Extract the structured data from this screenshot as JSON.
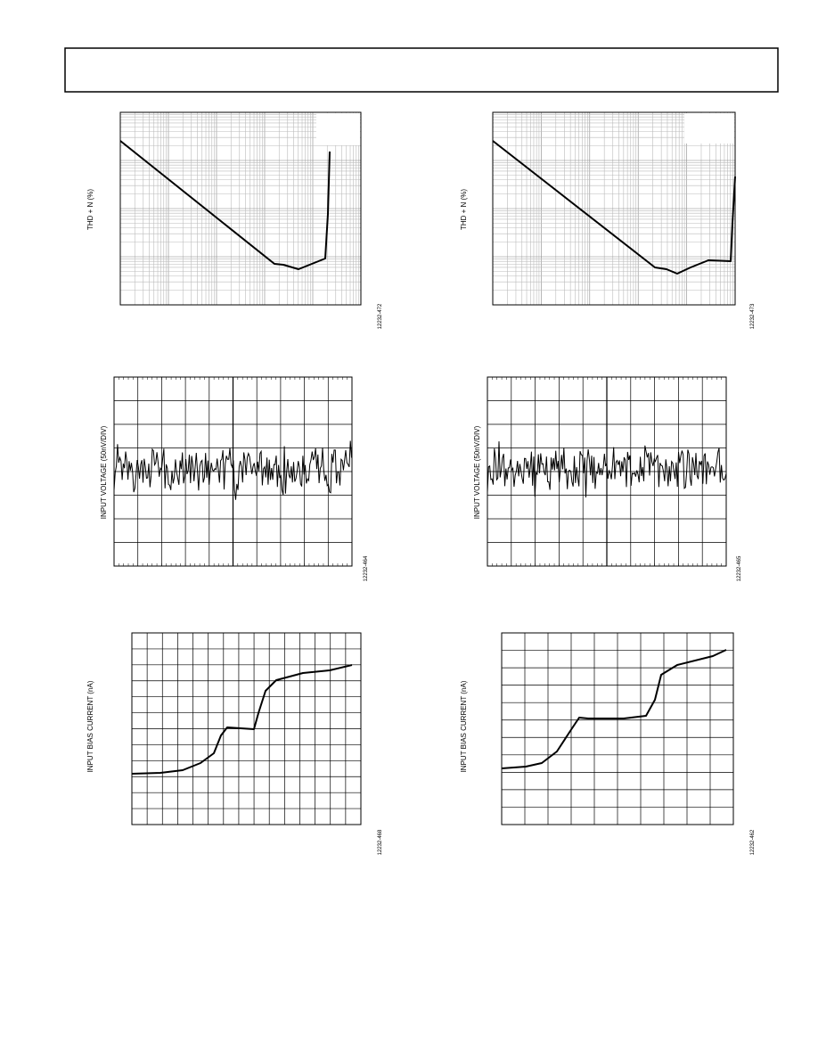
{
  "charts": [
    {
      "y_label": "THD + N (%)",
      "figure_id": "12232-472"
    },
    {
      "y_label": "THD + N (%)",
      "figure_id": "12232-473"
    },
    {
      "y_label": "INPUT VOLTAGE (50nV/DIV)",
      "figure_id": "12232-464"
    },
    {
      "y_label": "INPUT VOLTAGE (50nV/DIV)",
      "figure_id": "12232-465"
    },
    {
      "y_label": "INPUT BIAS CURRENT (nA)",
      "figure_id": "12232-468"
    },
    {
      "y_label": "INPUT BIAS CURRENT (nA)",
      "figure_id": "12232-462"
    }
  ]
}
